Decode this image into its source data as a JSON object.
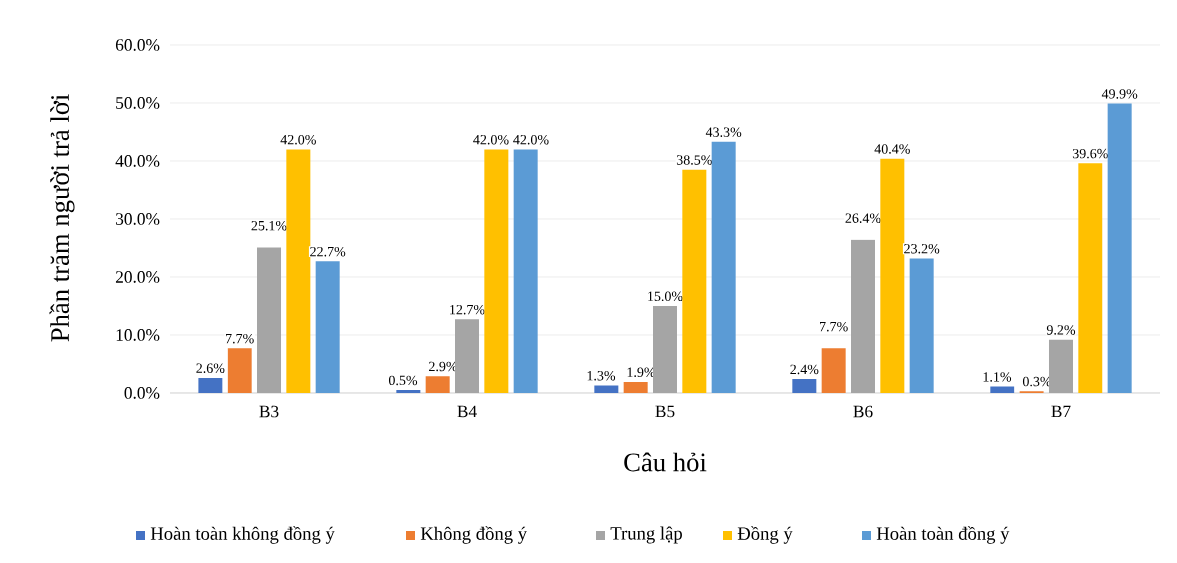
{
  "chart_data": {
    "type": "bar",
    "xlabel": "Câu hỏi",
    "ylabel": "Phần trăm người trả lời",
    "categories": [
      "B3",
      "B4",
      "B5",
      "B6",
      "B7"
    ],
    "series": [
      {
        "name": "Hoàn toàn không đồng ý",
        "color": "#4472c4",
        "values": [
          2.6,
          0.5,
          1.3,
          2.4,
          1.1
        ],
        "value_labels": [
          "2.6%",
          "0.5%",
          "1.3%",
          "2.4%",
          "1.1%"
        ]
      },
      {
        "name": "Không đồng ý",
        "color": "#ed7d31",
        "values": [
          7.7,
          2.9,
          1.9,
          7.7,
          0.3
        ],
        "value_labels": [
          "7.7%",
          "2.9%",
          "1.9%",
          "7.7%",
          "0.3%"
        ]
      },
      {
        "name": "Trung lập",
        "color": "#a5a5a5",
        "values": [
          25.1,
          12.7,
          15.0,
          26.4,
          9.2
        ],
        "value_labels": [
          "25.1%",
          "12.7%",
          "15.0%",
          "26.4%",
          "9.2%"
        ]
      },
      {
        "name": "Đồng ý",
        "color": "#ffc000",
        "values": [
          42.0,
          42.0,
          38.5,
          40.4,
          39.6
        ],
        "value_labels": [
          "42.0%",
          "42.0%",
          "38.5%",
          "40.4%",
          "39.6%"
        ]
      },
      {
        "name": "Hoàn toàn đồng ý",
        "color": "#5b9bd5",
        "values": [
          22.7,
          42.0,
          43.3,
          23.2,
          49.9
        ],
        "value_labels": [
          "22.7%",
          "42.0%",
          "43.3%",
          "23.2%",
          "49.9%"
        ]
      }
    ],
    "ylim": [
      0,
      60
    ],
    "yticks": [
      {
        "value": 0,
        "label": "0.0%"
      },
      {
        "value": 10,
        "label": "10.0%"
      },
      {
        "value": 20,
        "label": "20.0%"
      },
      {
        "value": 30,
        "label": "30.0%"
      },
      {
        "value": 40,
        "label": "40.0%"
      },
      {
        "value": 50,
        "label": "50.0%"
      },
      {
        "value": 60,
        "label": "60.0%"
      }
    ],
    "grid": "y",
    "legend": "bottom"
  }
}
